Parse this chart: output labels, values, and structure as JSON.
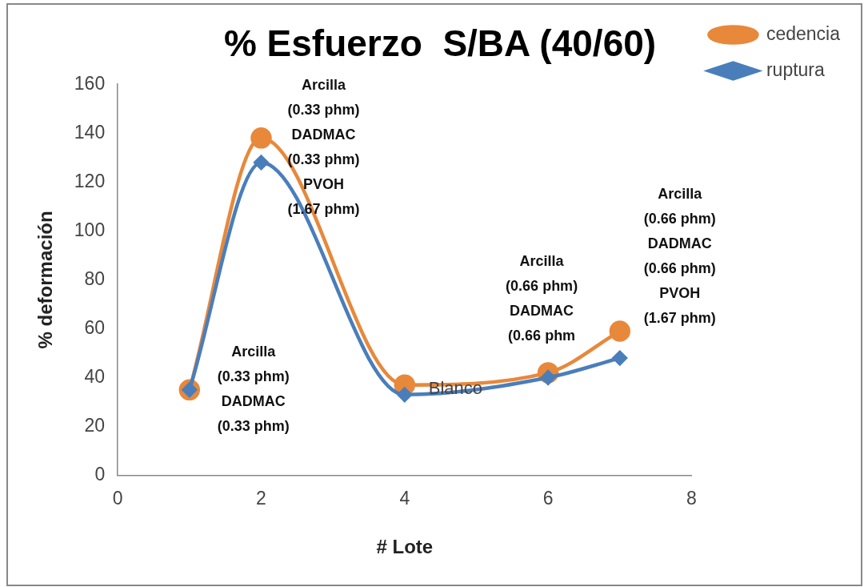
{
  "chart_data": {
    "type": "line",
    "title": "% Esfuerzo  S/BA (40/60)",
    "xlabel": "# Lote",
    "ylabel": "% deformación",
    "x": [
      1,
      2,
      4,
      6,
      7
    ],
    "series": [
      {
        "name": "cedencia",
        "color": "#e8883a",
        "marker": "circle",
        "values": [
          35,
          138,
          37,
          42,
          59
        ]
      },
      {
        "name": "ruptura",
        "color": "#4a7ebb",
        "marker": "diamond",
        "values": [
          35,
          128,
          33,
          40,
          48
        ]
      }
    ],
    "xlim": [
      0,
      8
    ],
    "xticks": [
      0,
      2,
      4,
      6,
      8
    ],
    "ylim": [
      0,
      160
    ],
    "yticks": [
      0,
      20,
      40,
      60,
      80,
      100,
      120,
      140,
      160
    ],
    "grid": false,
    "legend": "top right",
    "annotations": [
      {
        "text": "Arcilla\n(0.33 phm)\nDADMAC\n(0.33 phm)",
        "x": 1,
        "y": 35
      },
      {
        "text": "Arcilla\n(0.33 phm)\nDADMAC\n(0.33 phm)\nPVOH\n(1.67 phm)",
        "x": 2,
        "y": 138
      },
      {
        "text": "Blanco",
        "x": 4,
        "y": 37
      },
      {
        "text": "Arcilla\n(0.66 phm)\nDADMAC\n(0.66 phm",
        "x": 6,
        "y": 42
      },
      {
        "text": "Arcilla\n(0.66 phm)\nDADMAC\n(0.66 phm)\nPVOH\n(1.67 phm)",
        "x": 7,
        "y": 59
      }
    ]
  }
}
